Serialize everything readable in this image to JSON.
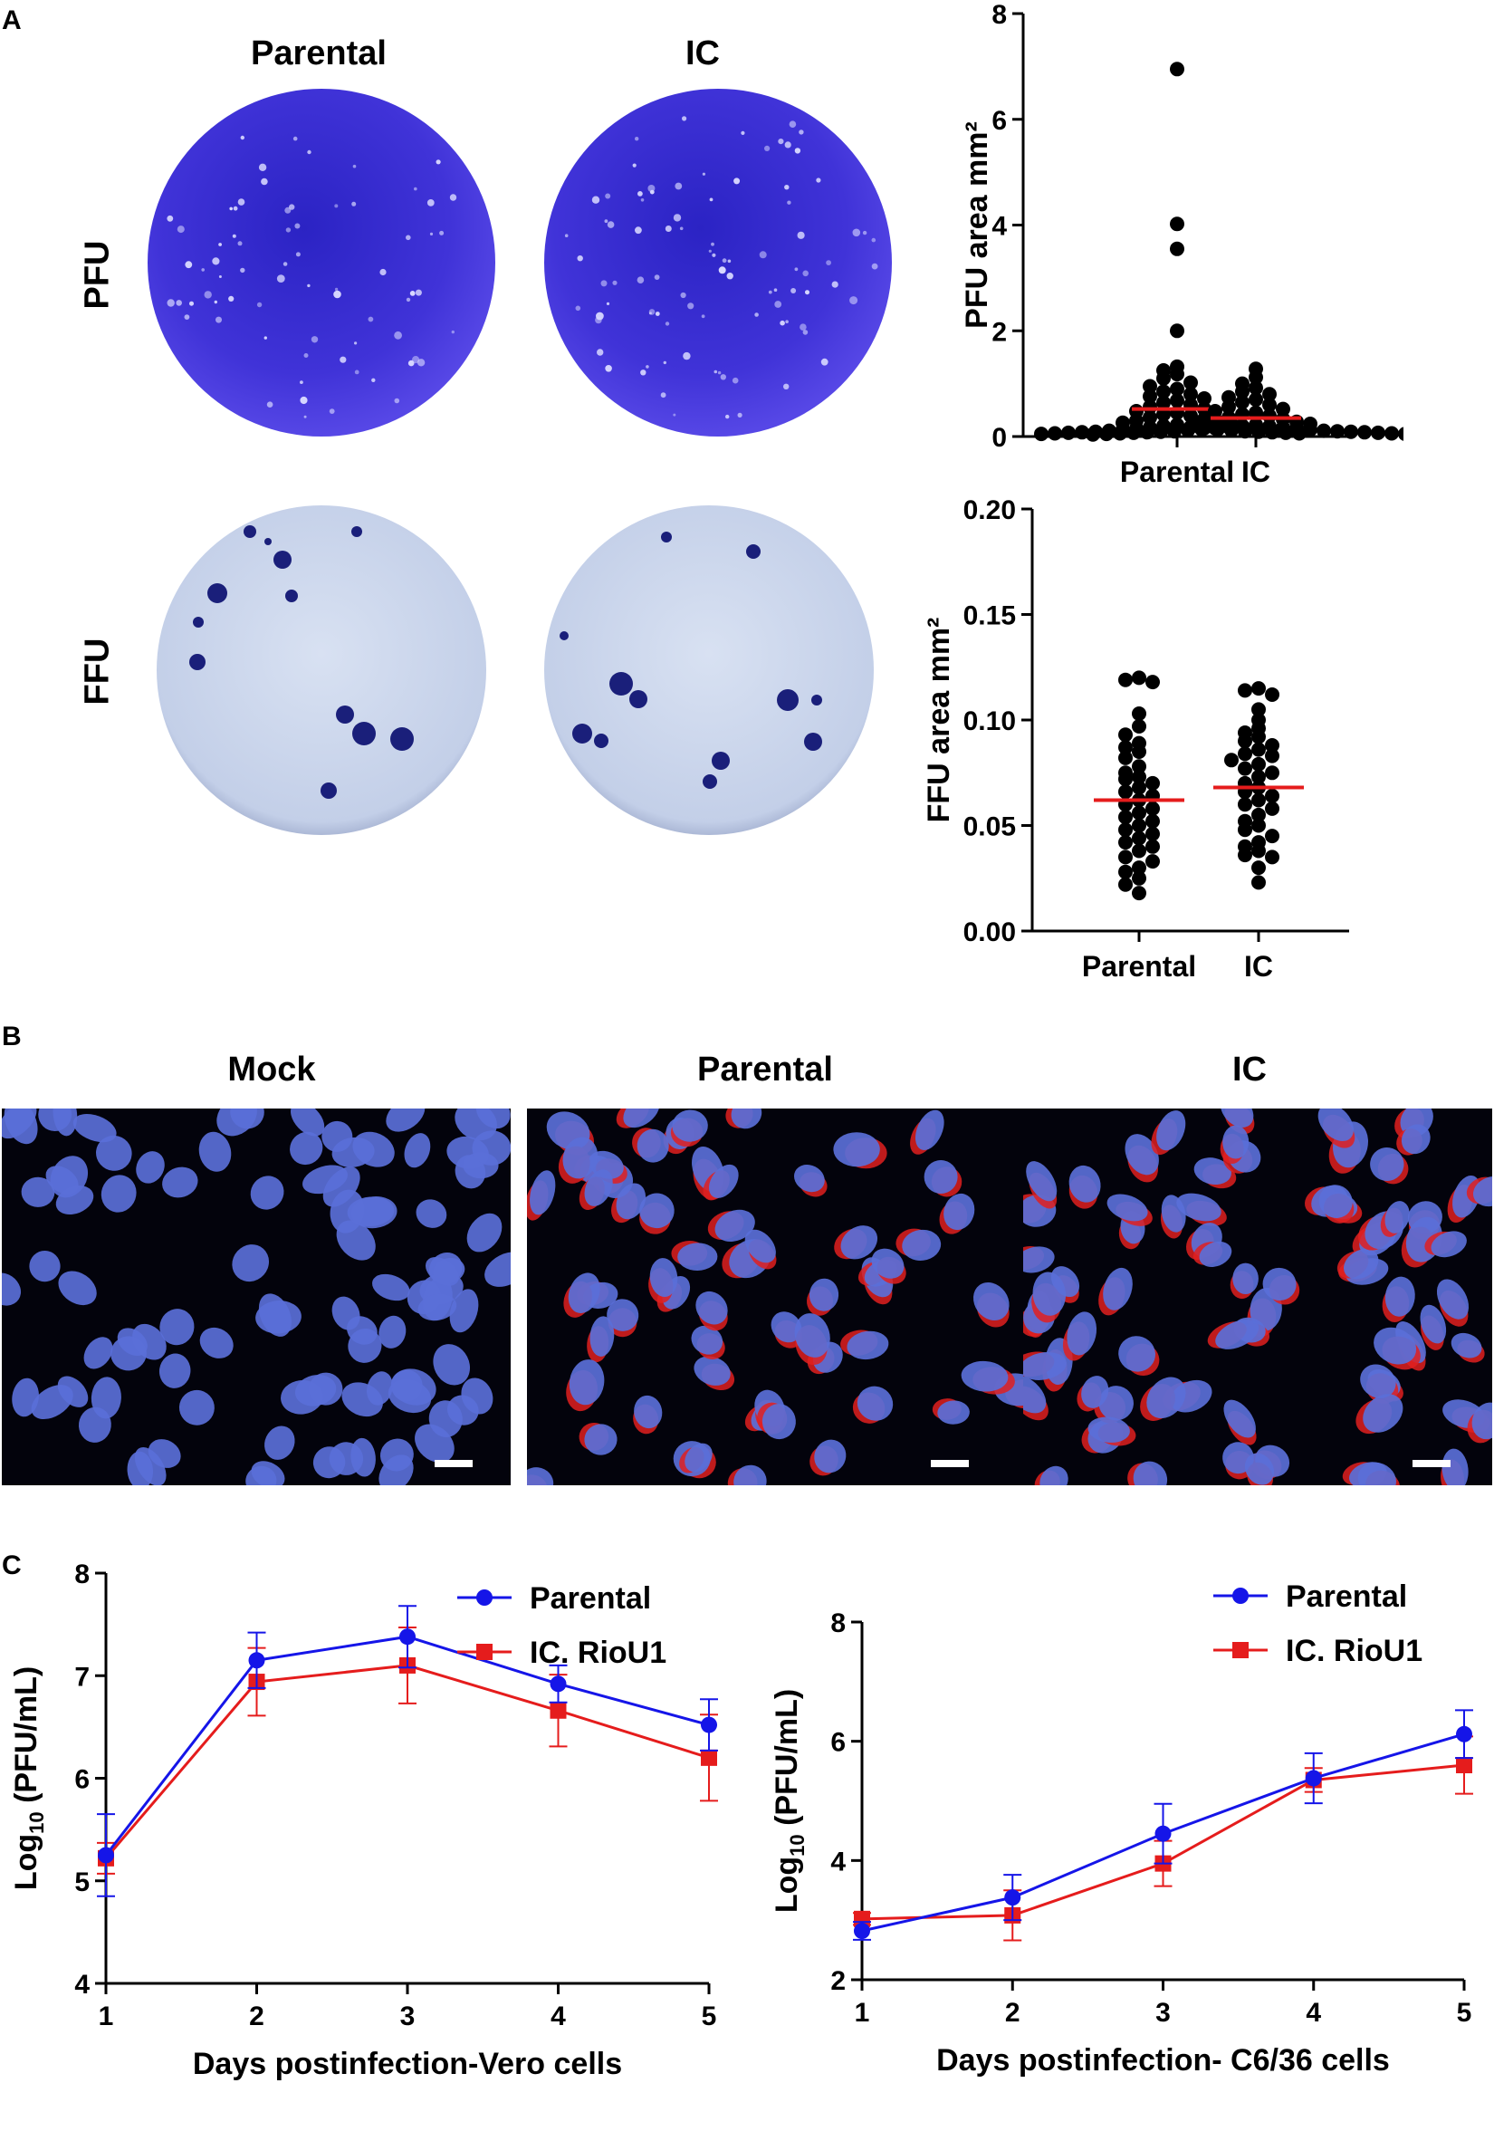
{
  "panels": {
    "a": "A",
    "b": "B",
    "c": "C"
  },
  "panel_a": {
    "column_headers": [
      "Parental",
      "IC"
    ],
    "row_labels": [
      "PFU",
      "FFU"
    ]
  },
  "panel_b": {
    "headers": [
      "Mock",
      "Parental",
      "IC"
    ]
  },
  "colors": {
    "parental": "#1515e8",
    "ic": "#e51c1c",
    "mean_line": "#e51c1c",
    "pfu_plate": "#3a2fcf",
    "ffu_plate": "#c8d4ea",
    "nuclei": "#5a6fd8",
    "stain": "#e02020"
  },
  "chart_data": [
    {
      "id": "pfu_area",
      "type": "scatter",
      "ylabel": "PFU area mm²",
      "categories": [
        "Parental",
        "IC"
      ],
      "ylim": [
        0,
        8
      ],
      "yticks": [
        0,
        2,
        4,
        6,
        8
      ],
      "ytick_labels": [
        "0",
        "2",
        "4",
        "6",
        "8"
      ],
      "means": [
        0.52,
        0.35
      ],
      "series": [
        {
          "values": [
            6.95,
            4.02,
            3.55,
            2.0,
            1.32,
            1.25,
            1.18,
            1.1,
            1.02,
            0.95,
            0.9,
            0.85,
            0.8,
            0.76,
            0.72,
            0.68,
            0.64,
            0.6,
            0.56,
            0.52,
            0.48,
            0.45,
            0.42,
            0.39,
            0.36,
            0.33,
            0.3,
            0.28,
            0.26,
            0.24,
            0.22,
            0.2,
            0.18,
            0.17,
            0.16,
            0.15,
            0.14,
            0.13,
            0.12,
            0.11,
            0.1,
            0.09,
            0.09,
            0.08,
            0.08,
            0.07,
            0.07,
            0.06,
            0.06,
            0.05
          ]
        },
        {
          "values": [
            1.28,
            1.12,
            1.0,
            0.92,
            0.85,
            0.8,
            0.74,
            0.7,
            0.65,
            0.6,
            0.56,
            0.52,
            0.48,
            0.45,
            0.42,
            0.39,
            0.36,
            0.33,
            0.3,
            0.28,
            0.26,
            0.24,
            0.22,
            0.2,
            0.19,
            0.18,
            0.17,
            0.16,
            0.15,
            0.14,
            0.13,
            0.12,
            0.11,
            0.1,
            0.1,
            0.09,
            0.09,
            0.08,
            0.08,
            0.07,
            0.07,
            0.06,
            0.06,
            0.05,
            0.05,
            0.04
          ]
        }
      ]
    },
    {
      "id": "ffu_area",
      "type": "scatter",
      "ylabel": "FFU area mm²",
      "categories": [
        "Parental",
        "IC"
      ],
      "ylim": [
        0,
        0.2
      ],
      "yticks": [
        0,
        0.05,
        0.1,
        0.15,
        0.2
      ],
      "ytick_labels": [
        "0.00",
        "0.05",
        "0.10",
        "0.15",
        "0.20"
      ],
      "means": [
        0.062,
        0.068
      ],
      "series": [
        {
          "values": [
            0.12,
            0.119,
            0.118,
            0.103,
            0.097,
            0.093,
            0.089,
            0.087,
            0.085,
            0.082,
            0.078,
            0.075,
            0.073,
            0.072,
            0.07,
            0.068,
            0.066,
            0.064,
            0.062,
            0.06,
            0.058,
            0.056,
            0.054,
            0.052,
            0.05,
            0.048,
            0.046,
            0.044,
            0.042,
            0.04,
            0.038,
            0.035,
            0.033,
            0.03,
            0.028,
            0.025,
            0.022,
            0.018
          ]
        },
        {
          "values": [
            0.115,
            0.114,
            0.112,
            0.105,
            0.1,
            0.096,
            0.094,
            0.092,
            0.09,
            0.088,
            0.086,
            0.084,
            0.083,
            0.081,
            0.079,
            0.077,
            0.075,
            0.073,
            0.07,
            0.068,
            0.066,
            0.064,
            0.062,
            0.06,
            0.058,
            0.055,
            0.052,
            0.05,
            0.048,
            0.045,
            0.042,
            0.04,
            0.038,
            0.036,
            0.035,
            0.03,
            0.023
          ]
        }
      ]
    },
    {
      "id": "vero_growth",
      "type": "line",
      "xlabel": "Days postinfection-Vero cells",
      "ylabel_main": "Log",
      "ylabel_sub": "10",
      "ylabel_rest": " (PFU/mL)",
      "x": [
        1,
        2,
        3,
        4,
        5
      ],
      "xtick_labels": [
        "1",
        "2",
        "3",
        "4",
        "5"
      ],
      "ylim": [
        4,
        8
      ],
      "yticks": [
        4,
        5,
        6,
        7,
        8
      ],
      "ytick_labels": [
        "4",
        "5",
        "6",
        "7",
        "8"
      ],
      "series": [
        {
          "name": "Parental",
          "values": [
            5.25,
            7.15,
            7.38,
            6.92,
            6.52
          ],
          "errors": [
            0.4,
            0.27,
            0.3,
            0.18,
            0.25
          ]
        },
        {
          "name": "IC. RioU1",
          "values": [
            5.22,
            6.94,
            7.1,
            6.66,
            6.2
          ],
          "errors": [
            0.15,
            0.33,
            0.37,
            0.35,
            0.42
          ]
        }
      ],
      "legend": "top-right"
    },
    {
      "id": "c636_growth",
      "type": "line",
      "xlabel": "Days postinfection- C6/36 cells",
      "ylabel_main": "Log",
      "ylabel_sub": "10",
      "ylabel_rest": " (PFU/mL)",
      "x": [
        1,
        2,
        3,
        4,
        5
      ],
      "xtick_labels": [
        "1",
        "2",
        "3",
        "4",
        "5"
      ],
      "ylim": [
        2,
        8
      ],
      "yticks": [
        2,
        4,
        6,
        8
      ],
      "ytick_labels": [
        "2",
        "4",
        "6",
        "8"
      ],
      "series": [
        {
          "name": "Parental",
          "values": [
            2.82,
            3.38,
            4.45,
            5.38,
            6.12
          ],
          "errors": [
            0.15,
            0.38,
            0.5,
            0.42,
            0.4
          ]
        },
        {
          "name": "IC. RioU1",
          "values": [
            3.02,
            3.08,
            3.95,
            5.35,
            5.6
          ],
          "errors": [
            0.1,
            0.42,
            0.38,
            0.2,
            0.48
          ]
        }
      ],
      "legend": "top-right"
    }
  ]
}
